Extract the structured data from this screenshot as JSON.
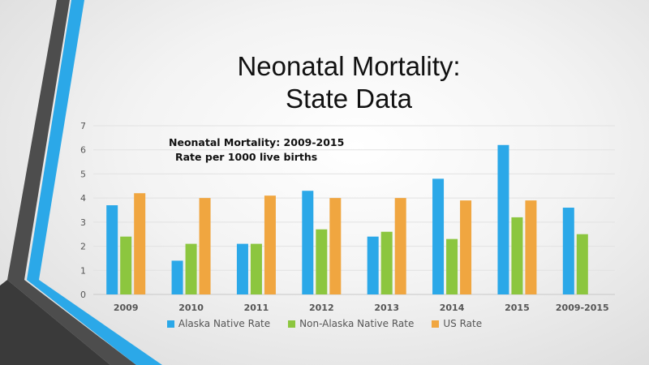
{
  "slide": {
    "title_line1": "Neonatal Mortality:",
    "title_line2": "State Data"
  },
  "chart_data": {
    "type": "bar",
    "title": "Neonatal Mortality: 2009-2015",
    "subtitle": "Rate per 1000 live births",
    "categories": [
      "2009",
      "2010",
      "2011",
      "2012",
      "2013",
      "2014",
      "2015",
      "2009-2015"
    ],
    "series": [
      {
        "name": "Alaska Native Rate",
        "color": "#2ba8e8",
        "values": [
          3.7,
          1.4,
          2.1,
          4.3,
          2.4,
          4.8,
          6.2,
          3.6
        ]
      },
      {
        "name": "Non-Alaska Native Rate",
        "color": "#8cc63f",
        "values": [
          2.4,
          2.1,
          2.1,
          2.7,
          2.6,
          2.3,
          3.2,
          2.5
        ]
      },
      {
        "name": "US Rate",
        "color": "#f0a640",
        "values": [
          4.2,
          4.0,
          4.1,
          4.0,
          4.0,
          3.9,
          3.9,
          null
        ]
      }
    ],
    "ylim": [
      0,
      7
    ],
    "yticks": [
      "0",
      "1",
      "2",
      "3",
      "4",
      "5",
      "6",
      "7"
    ],
    "grid": true,
    "legend_position": "bottom"
  }
}
